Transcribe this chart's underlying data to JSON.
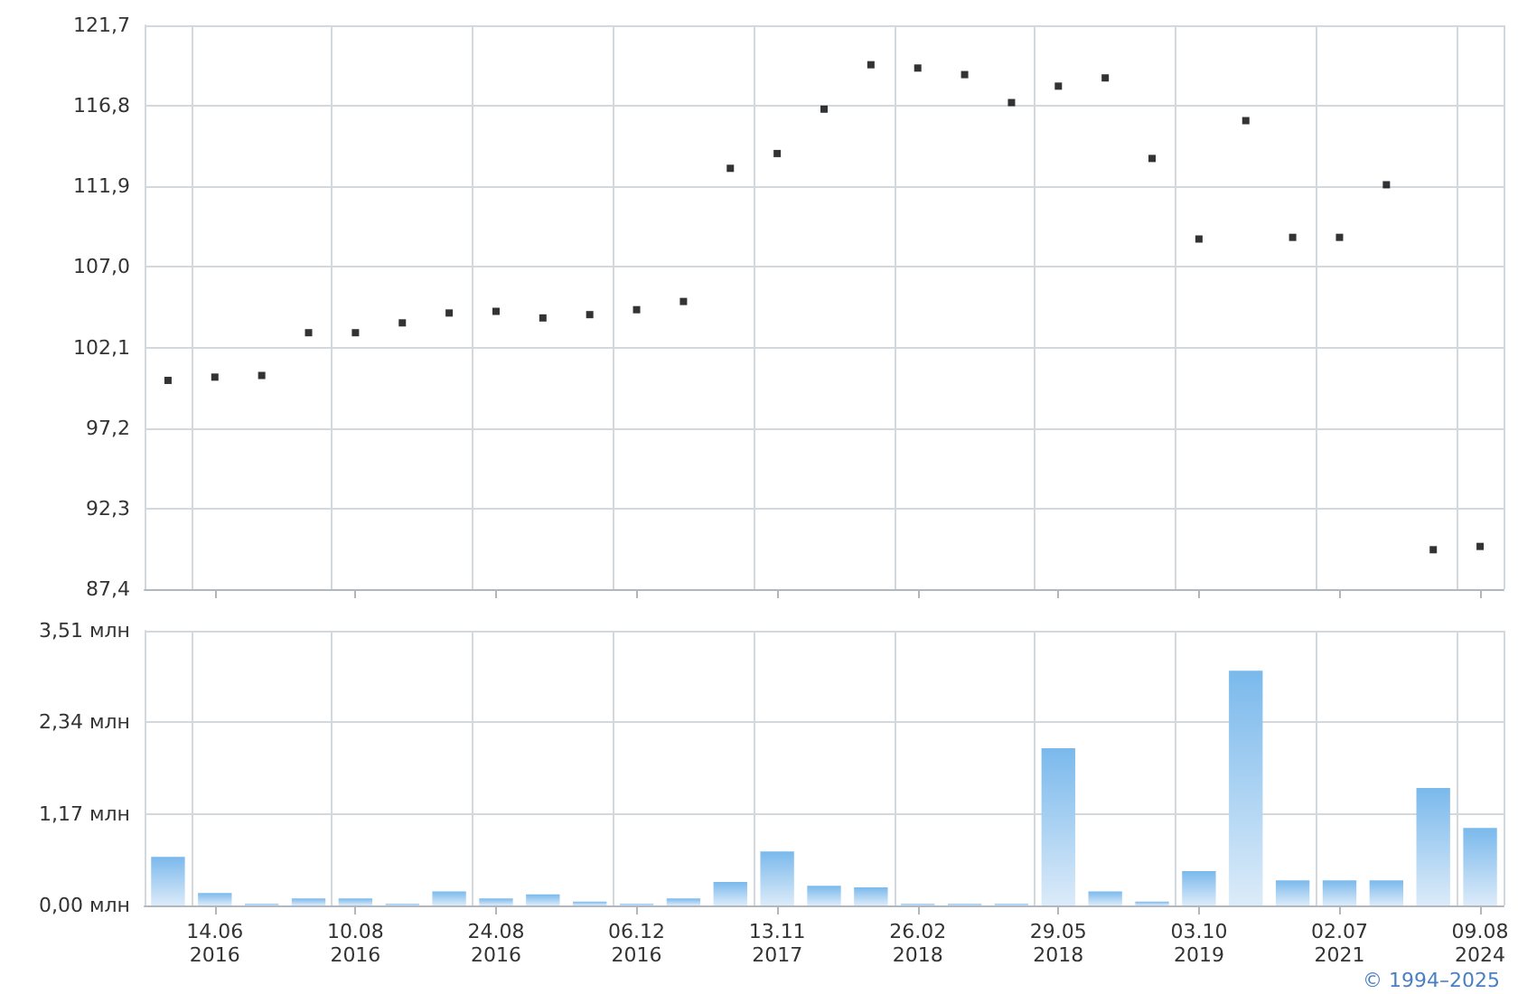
{
  "chart_data": [
    {
      "type": "scatter",
      "categories": [
        null,
        null,
        null,
        null,
        null,
        null,
        null,
        null,
        null,
        null,
        null,
        null,
        null,
        null,
        null,
        null,
        null,
        null,
        null,
        null,
        null,
        null,
        null,
        null,
        null,
        null,
        null,
        null,
        null
      ],
      "series": [
        {
          "color": "#000000",
          "values": [
            100.1,
            100.3,
            100.4,
            103.0,
            103.0,
            103.6,
            104.2,
            104.3,
            103.9,
            104.1,
            104.4,
            104.9,
            113.0,
            113.9,
            116.6,
            119.3,
            119.1,
            118.7,
            117.0,
            118.0,
            118.5,
            113.6,
            108.7,
            115.9,
            108.8,
            108.8,
            112.0,
            89.8,
            90.0
          ]
        }
      ],
      "ylim": [
        87.4,
        121.7
      ],
      "yticks": [
        {
          "value": 87.4,
          "label": "87,4"
        },
        {
          "value": 92.3,
          "label": "92,3"
        },
        {
          "value": 97.2,
          "label": "97,2"
        },
        {
          "value": 102.1,
          "label": "102,1"
        },
        {
          "value": 107.0,
          "label": "107,0"
        },
        {
          "value": 111.9,
          "label": "111,9"
        },
        {
          "value": 116.8,
          "label": "116,8"
        },
        {
          "value": 121.7,
          "label": "121,7"
        }
      ],
      "grid": true,
      "tick_labels": "y",
      "marker": "square"
    },
    {
      "type": "bar",
      "categories": [
        null,
        "14.06\n2016",
        null,
        null,
        "10.08\n2016",
        null,
        null,
        "24.08\n2016",
        null,
        null,
        "06.12\n2016",
        null,
        null,
        "13.11\n2017",
        null,
        null,
        "26.02\n2018",
        null,
        null,
        "29.05\n2018",
        null,
        null,
        "03.10\n2019",
        null,
        null,
        "02.07\n2021",
        null,
        null,
        "09.08\n2024"
      ],
      "series": [
        {
          "color": "#7ab9ec",
          "values": [
            0.62,
            0.16,
            0.02,
            0.09,
            0.09,
            0.02,
            0.18,
            0.09,
            0.14,
            0.05,
            0.02,
            0.09,
            0.3,
            0.69,
            0.25,
            0.23,
            0.02,
            0.02,
            0.02,
            2.01,
            0.18,
            0.05,
            0.44,
            3.0,
            0.32,
            0.32,
            0.32,
            1.5,
            0.99
          ]
        }
      ],
      "ylim": [
        0,
        3.51
      ],
      "yticks": [
        {
          "value": 0,
          "label": "0,00 млн"
        },
        {
          "value": 1.17,
          "label": "1,17 млн"
        },
        {
          "value": 2.34,
          "label": "2,34 млн"
        },
        {
          "value": 3.51,
          "label": "3,51 млн"
        }
      ],
      "grid": true,
      "annotations": [
        "© 1994–2025"
      ]
    }
  ]
}
